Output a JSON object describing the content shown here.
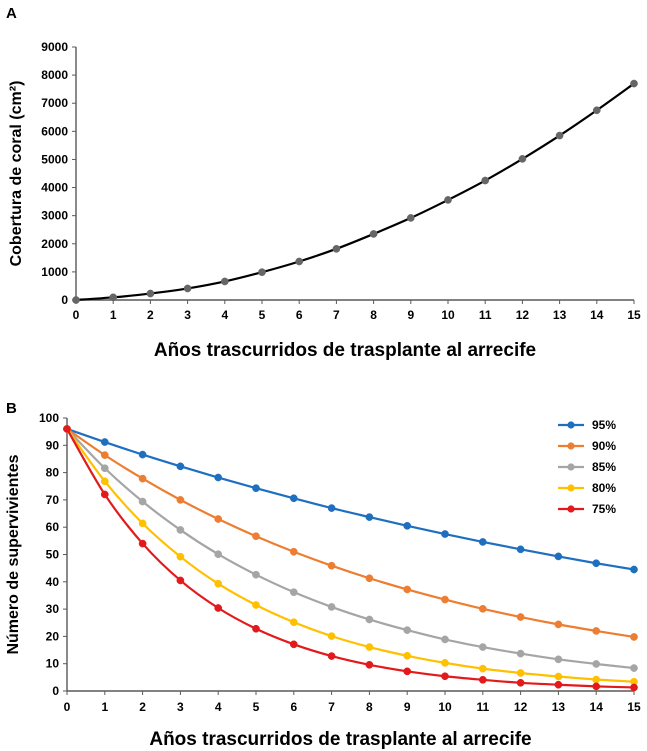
{
  "chart_data": [
    {
      "panel": "A",
      "type": "line",
      "x": [
        0,
        1,
        2,
        3,
        4,
        5,
        6,
        7,
        8,
        9,
        10,
        11,
        12,
        13,
        14,
        15
      ],
      "series": [
        {
          "name": "Cobertura",
          "color": "#000000",
          "marker_color": "#666666",
          "values": [
            0,
            95,
            230,
            410,
            660,
            990,
            1370,
            1820,
            2350,
            2920,
            3560,
            4250,
            5020,
            5850,
            6750,
            7700
          ]
        }
      ],
      "xlabel": "Años trascurridos de trasplante al arrecife",
      "ylabel": "Cobertura de coral (cm²)",
      "xlim": [
        0,
        15
      ],
      "ylim": [
        0,
        9000
      ],
      "yticks": [
        0,
        1000,
        2000,
        3000,
        4000,
        5000,
        6000,
        7000,
        8000,
        9000
      ],
      "xticks": [
        0,
        1,
        2,
        3,
        4,
        5,
        6,
        7,
        8,
        9,
        10,
        11,
        12,
        13,
        14,
        15
      ],
      "grid": false
    },
    {
      "panel": "B",
      "type": "line",
      "x": [
        0,
        1,
        2,
        3,
        4,
        5,
        6,
        7,
        8,
        9,
        10,
        11,
        12,
        13,
        14,
        15
      ],
      "series": [
        {
          "name": "95%",
          "color": "#1F6FC0",
          "values": [
            96,
            91.2,
            86.6,
            82.3,
            78.2,
            74.3,
            70.6,
            67.0,
            63.7,
            60.5,
            57.5,
            54.6,
            51.9,
            49.3,
            46.8,
            44.5
          ]
        },
        {
          "name": "90%",
          "color": "#ED7D31",
          "values": [
            96,
            86.4,
            77.8,
            70.0,
            63.0,
            56.7,
            51.0,
            45.9,
            41.3,
            37.2,
            33.5,
            30.1,
            27.1,
            24.4,
            22.0,
            19.8
          ]
        },
        {
          "name": "85%",
          "color": "#A5A5A5",
          "values": [
            96,
            81.6,
            69.4,
            59.0,
            50.1,
            42.6,
            36.2,
            30.8,
            26.2,
            22.3,
            18.9,
            16.1,
            13.7,
            11.6,
            9.9,
            8.4
          ]
        },
        {
          "name": "80%",
          "color": "#FFC000",
          "values": [
            96,
            76.8,
            61.4,
            49.2,
            39.3,
            31.5,
            25.2,
            20.1,
            16.1,
            12.9,
            10.3,
            8.2,
            6.6,
            5.3,
            4.2,
            3.4
          ]
        },
        {
          "name": "75%",
          "color": "#E31A1C",
          "values": [
            96,
            72.0,
            54.0,
            40.5,
            30.4,
            22.8,
            17.1,
            12.8,
            9.6,
            7.2,
            5.4,
            4.1,
            3.0,
            2.3,
            1.7,
            1.3
          ]
        }
      ],
      "xlabel": "Años trascurridos de trasplante al arrecife",
      "ylabel": "Número de supervivientes",
      "xlim": [
        0,
        15
      ],
      "ylim": [
        0,
        100
      ],
      "yticks": [
        0,
        10,
        20,
        30,
        40,
        50,
        60,
        70,
        80,
        90,
        100
      ],
      "xticks": [
        0,
        1,
        2,
        3,
        4,
        5,
        6,
        7,
        8,
        9,
        10,
        11,
        12,
        13,
        14,
        15
      ],
      "legend": "top-right",
      "grid": false
    }
  ]
}
